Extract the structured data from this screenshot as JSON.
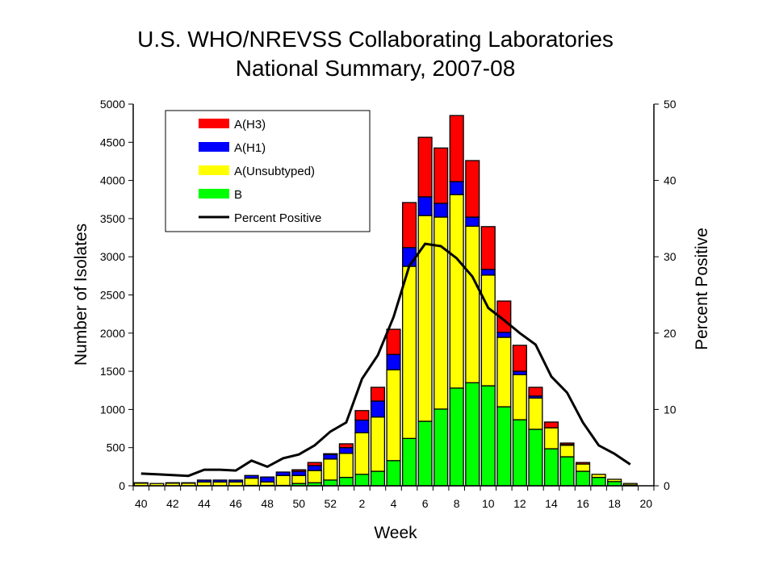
{
  "chart_data": {
    "type": "bar",
    "stacked": true,
    "title": [
      "U.S. WHO/NREVSS Collaborating Laboratories",
      "National Summary, 2007-08"
    ],
    "xlabel": "Week",
    "ylabel": "Number of Isolates",
    "y2label": "Percent Positive",
    "ylim": [
      0,
      5000
    ],
    "y2lim": [
      0,
      50
    ],
    "yticks": [
      0,
      500,
      1000,
      1500,
      2000,
      2500,
      3000,
      3500,
      4000,
      4500,
      5000
    ],
    "y2ticks": [
      0,
      10,
      20,
      30,
      40,
      50
    ],
    "categories": [
      "40",
      "41",
      "42",
      "43",
      "44",
      "45",
      "46",
      "47",
      "48",
      "49",
      "50",
      "51",
      "52",
      "1",
      "2",
      "3",
      "4",
      "5",
      "6",
      "7",
      "8",
      "9",
      "10",
      "11",
      "12",
      "13",
      "14",
      "15",
      "16",
      "17",
      "18",
      "19",
      "20"
    ],
    "xtick_labels": [
      "40",
      "",
      "42",
      "",
      "44",
      "",
      "46",
      "",
      "48",
      "",
      "50",
      "",
      "52",
      "",
      "2",
      "",
      "4",
      "",
      "6",
      "",
      "8",
      "",
      "10",
      "",
      "12",
      "",
      "14",
      "",
      "16",
      "",
      "18",
      "",
      "20"
    ],
    "legend_position": "top-left",
    "series": [
      {
        "name": "B",
        "color": "#00ff00",
        "values": [
          0,
          0,
          0,
          0,
          0,
          0,
          0,
          5,
          5,
          5,
          30,
          40,
          75,
          110,
          150,
          190,
          330,
          620,
          845,
          1005,
          1280,
          1350,
          1310,
          1035,
          865,
          740,
          485,
          380,
          190,
          110,
          55,
          10,
          0
        ]
      },
      {
        "name": "A(Unsubtyped)",
        "color": "#ffff00",
        "values": [
          35,
          30,
          35,
          35,
          50,
          50,
          50,
          95,
          45,
          130,
          105,
          160,
          275,
          315,
          545,
          710,
          1190,
          2255,
          2695,
          2515,
          2535,
          2050,
          1450,
          910,
          590,
          410,
          275,
          150,
          95,
          40,
          30,
          20,
          0
        ]
      },
      {
        "name": "A(H1)",
        "color": "#0000ff",
        "values": [
          0,
          0,
          0,
          0,
          25,
          25,
          25,
          35,
          65,
          45,
          55,
          65,
          60,
          75,
          165,
          210,
          200,
          245,
          245,
          180,
          170,
          120,
          75,
          65,
          45,
          25,
          0,
          10,
          0,
          0,
          0,
          0,
          0
        ]
      },
      {
        "name": "A(H3)",
        "color": "#ff0000",
        "values": [
          5,
          0,
          5,
          5,
          0,
          0,
          0,
          0,
          0,
          0,
          20,
          40,
          10,
          50,
          125,
          180,
          330,
          590,
          780,
          725,
          865,
          740,
          560,
          410,
          340,
          115,
          75,
          20,
          20,
          0,
          0,
          0,
          0
        ]
      }
    ],
    "line": {
      "name": "Percent Positive",
      "color": "#000000",
      "axis": "right",
      "values": [
        1.6,
        1.5,
        1.4,
        1.3,
        2.1,
        2.1,
        2.0,
        3.3,
        2.5,
        3.6,
        4.1,
        5.3,
        7.1,
        8.3,
        14.0,
        17.1,
        22.1,
        28.8,
        31.7,
        31.4,
        29.8,
        27.4,
        23.3,
        21.7,
        20.0,
        18.5,
        14.3,
        12.2,
        8.3,
        5.3,
        4.2,
        2.8,
        null
      ]
    },
    "legend": [
      "A(H3)",
      "A(H1)",
      "A(Unsubtyped)",
      "B",
      "Percent Positive"
    ]
  }
}
